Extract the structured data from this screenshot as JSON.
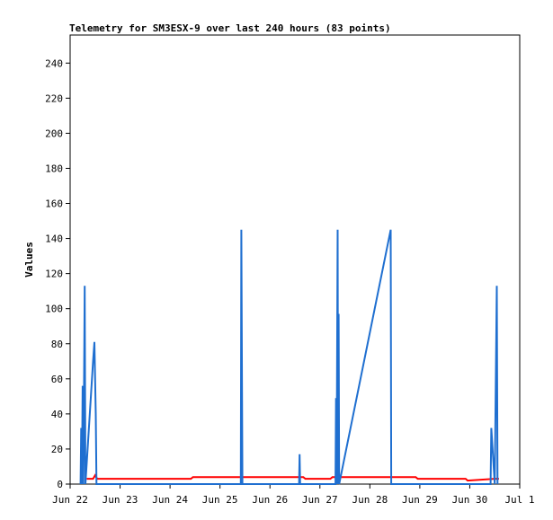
{
  "chart_data": {
    "type": "line",
    "title": "Telemetry for SM3ESX-9 over last 240 hours (83 points)",
    "xlabel": "",
    "ylabel": "Values",
    "ylim": [
      0,
      256
    ],
    "yticks": [
      0,
      20,
      40,
      60,
      80,
      100,
      120,
      140,
      160,
      180,
      200,
      220,
      240
    ],
    "xlim": [
      "2022-06-22 00:00",
      "2022-07-01 00:00"
    ],
    "xticks": [
      {
        "at": "2022-06-22 00:00",
        "label": "Jun 22"
      },
      {
        "at": "2022-06-23 00:00",
        "label": "Jun 23"
      },
      {
        "at": "2022-06-24 00:00",
        "label": "Jun 24"
      },
      {
        "at": "2022-06-25 00:00",
        "label": "Jun 25"
      },
      {
        "at": "2022-06-26 00:00",
        "label": "Jun 26"
      },
      {
        "at": "2022-06-27 00:00",
        "label": "Jun 27"
      },
      {
        "at": "2022-06-28 00:00",
        "label": "Jun 28"
      },
      {
        "at": "2022-06-29 00:00",
        "label": "Jun 29"
      },
      {
        "at": "2022-06-30 00:00",
        "label": "Jun 30"
      },
      {
        "at": "2022-07-01 00:00",
        "label": "Jul 1"
      }
    ],
    "grid": false,
    "legend": "none",
    "series": [
      {
        "color": "#ff0000",
        "points": [
          [
            "2022-06-22 08:00",
            3
          ],
          [
            "2022-06-22 11:00",
            3
          ],
          [
            "2022-06-22 12:00",
            5
          ],
          [
            "2022-06-22 13:00",
            3
          ],
          [
            "2022-06-24 10:00",
            3
          ],
          [
            "2022-06-24 11:00",
            4
          ],
          [
            "2022-06-26 16:00",
            4
          ],
          [
            "2022-06-26 17:00",
            3
          ],
          [
            "2022-06-27 05:00",
            3
          ],
          [
            "2022-06-27 06:00",
            4
          ],
          [
            "2022-06-28 22:00",
            4
          ],
          [
            "2022-06-28 23:00",
            3
          ],
          [
            "2022-06-29 22:00",
            3
          ],
          [
            "2022-06-29 23:00",
            2
          ],
          [
            "2022-06-30 12:00",
            3
          ],
          [
            "2022-06-30 14:00",
            3
          ]
        ]
      },
      {
        "color": "#1f6fd0",
        "points": [
          [
            "2022-06-22 05:00",
            0
          ],
          [
            "2022-06-22 05:20",
            32
          ],
          [
            "2022-06-22 05:40",
            0
          ],
          [
            "2022-06-22 06:00",
            56
          ],
          [
            "2022-06-22 06:20",
            0
          ],
          [
            "2022-06-22 07:00",
            113
          ],
          [
            "2022-06-22 07:20",
            0
          ],
          [
            "2022-06-22 11:00",
            70
          ],
          [
            "2022-06-22 11:40",
            81
          ],
          [
            "2022-06-22 12:20",
            40
          ],
          [
            "2022-06-22 12:40",
            0
          ],
          [
            "2022-06-25 10:00",
            0
          ],
          [
            "2022-06-25 10:15",
            145
          ],
          [
            "2022-06-25 10:30",
            72
          ],
          [
            "2022-06-25 10:45",
            0
          ],
          [
            "2022-06-26 14:00",
            0
          ],
          [
            "2022-06-26 14:15",
            17
          ],
          [
            "2022-06-26 14:30",
            0
          ],
          [
            "2022-06-27 07:30",
            0
          ],
          [
            "2022-06-27 07:45",
            49
          ],
          [
            "2022-06-27 08:00",
            0
          ],
          [
            "2022-06-27 08:30",
            145
          ],
          [
            "2022-06-27 08:45",
            0
          ],
          [
            "2022-06-27 09:00",
            97
          ],
          [
            "2022-06-27 09:15",
            0
          ],
          [
            "2022-06-28 10:00",
            145
          ],
          [
            "2022-06-28 10:15",
            0
          ],
          [
            "2022-06-30 10:00",
            0
          ],
          [
            "2022-06-30 10:20",
            32
          ],
          [
            "2022-06-30 12:00",
            0
          ],
          [
            "2022-06-30 13:00",
            113
          ],
          [
            "2022-06-30 13:20",
            0
          ]
        ]
      }
    ]
  }
}
